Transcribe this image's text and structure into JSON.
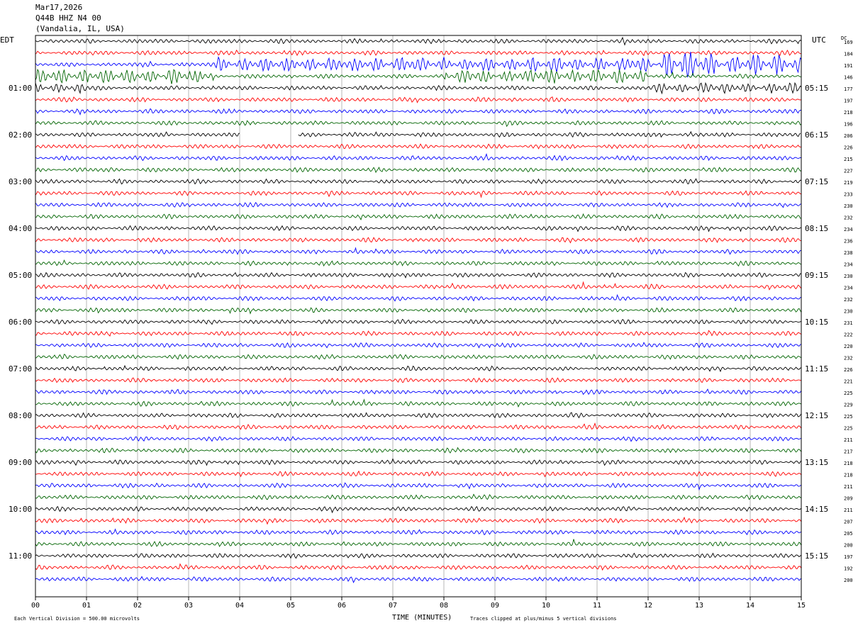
{
  "header": {
    "date": "Mar17,2026",
    "station": "Q44B HHZ N4 00",
    "location": "(Vandalia, IL, USA)",
    "left_tz": "EDT",
    "right_tz": "UTC",
    "dc_label": "DC"
  },
  "chart_data": {
    "type": "line",
    "xlabel": "TIME (MINUTES)",
    "xlim": [
      0,
      15
    ],
    "x_ticks": [
      "00",
      "01",
      "02",
      "03",
      "04",
      "05",
      "06",
      "07",
      "08",
      "09",
      "10",
      "11",
      "12",
      "13",
      "14",
      "15"
    ],
    "left_hour_labels": [
      "01:00",
      "02:00",
      "03:00",
      "04:00",
      "05:00",
      "06:00",
      "07:00",
      "08:00",
      "09:00",
      "10:00",
      "11:00"
    ],
    "right_hour_labels": [
      "05:15",
      "06:15",
      "07:15",
      "08:15",
      "09:15",
      "10:15",
      "11:15",
      "12:15",
      "13:15",
      "14:15",
      "15:15"
    ],
    "dc_offsets": [
      "169",
      "184",
      "191",
      "146",
      "177",
      "197",
      "218",
      "196",
      "206",
      "226",
      "215",
      "227",
      "219",
      "233",
      "230",
      "232",
      "234",
      "236",
      "238",
      "234",
      "230",
      "234",
      "232",
      "230",
      "231",
      "222",
      "220",
      "232",
      "226",
      "221",
      "225",
      "229",
      "225",
      "225",
      "211",
      "217",
      "218",
      "218",
      "211",
      "209",
      "211",
      "207",
      "205",
      "200",
      "197",
      "192",
      "200"
    ],
    "trace_colors": [
      "#000000",
      "#ff0000",
      "#0000ff",
      "#006400"
    ],
    "footer_left": "Each Vertical Division =  500.00 microvolts",
    "footer_right": "Traces clipped at plus/minus 5 vertical divisions"
  }
}
